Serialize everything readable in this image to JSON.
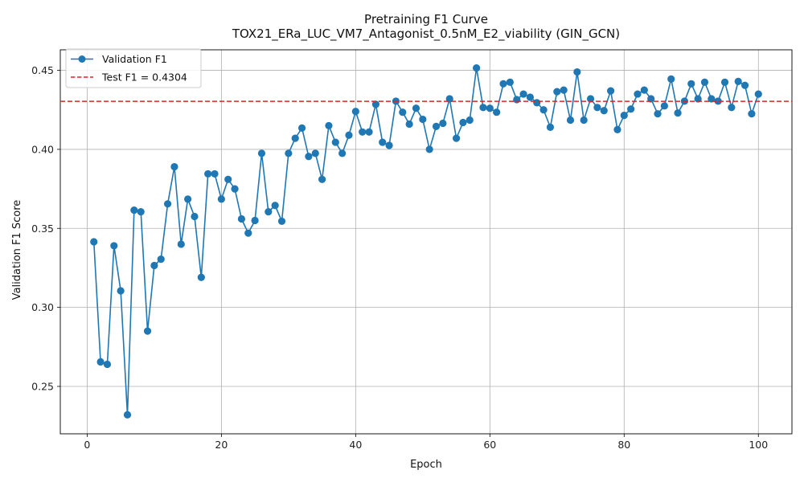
{
  "chart_data": {
    "type": "line",
    "title": "Pretraining F1 Curve",
    "subtitle": "TOX21_ERa_LUC_VM7_Antagonist_0.5nM_E2_viability (GIN_GCN)",
    "xlabel": "Epoch",
    "ylabel": "Validation F1 Score",
    "xlim": [
      -4,
      105
    ],
    "ylim": [
      0.22,
      0.463
    ],
    "xticks": [
      0,
      20,
      40,
      60,
      80,
      100
    ],
    "yticks": [
      0.25,
      0.3,
      0.35,
      0.4,
      0.45
    ],
    "ytick_labels": [
      "0.25",
      "0.30",
      "0.35",
      "0.40",
      "0.45"
    ],
    "grid": true,
    "legend_position": "top-left",
    "series": [
      {
        "name": "Validation F1",
        "color": "#1f77b4",
        "marker": "circle",
        "x": [
          1,
          2,
          3,
          4,
          5,
          6,
          7,
          8,
          9,
          10,
          11,
          12,
          13,
          14,
          15,
          16,
          17,
          18,
          19,
          20,
          21,
          22,
          23,
          24,
          25,
          26,
          27,
          28,
          29,
          30,
          31,
          32,
          33,
          34,
          35,
          36,
          37,
          38,
          39,
          40,
          41,
          42,
          43,
          44,
          45,
          46,
          47,
          48,
          49,
          50,
          51,
          52,
          53,
          54,
          55,
          56,
          57,
          58,
          59,
          60,
          61,
          62,
          63,
          64,
          65,
          66,
          67,
          68,
          69,
          70,
          71,
          72,
          73,
          74,
          75,
          76,
          77,
          78,
          79,
          80,
          81,
          82,
          83,
          84,
          85,
          86,
          87,
          88,
          89,
          90,
          91,
          92,
          93,
          94,
          95,
          96,
          97,
          98,
          99,
          100
        ],
        "y": [
          0.3415,
          0.2655,
          0.264,
          0.339,
          0.3105,
          0.232,
          0.3615,
          0.3605,
          0.285,
          0.3265,
          0.3305,
          0.3655,
          0.389,
          0.34,
          0.3685,
          0.3575,
          0.319,
          0.3845,
          0.3845,
          0.3685,
          0.381,
          0.375,
          0.356,
          0.347,
          0.355,
          0.3975,
          0.3605,
          0.3645,
          0.3545,
          0.3975,
          0.407,
          0.4135,
          0.3955,
          0.3975,
          0.381,
          0.415,
          0.4045,
          0.3975,
          0.409,
          0.424,
          0.411,
          0.411,
          0.4285,
          0.4045,
          0.4025,
          0.4305,
          0.4235,
          0.416,
          0.426,
          0.419,
          0.4,
          0.4145,
          0.4165,
          0.432,
          0.407,
          0.417,
          0.4185,
          0.4515,
          0.4265,
          0.426,
          0.4235,
          0.4415,
          0.4425,
          0.4315,
          0.435,
          0.433,
          0.4295,
          0.425,
          0.414,
          0.4365,
          0.4375,
          0.4185,
          0.449,
          0.4185,
          0.432,
          0.4265,
          0.4245,
          0.437,
          0.4125,
          0.4215,
          0.4255,
          0.435,
          0.4375,
          0.432,
          0.4225,
          0.4275,
          0.4445,
          0.423,
          0.4305,
          0.4415,
          0.432,
          0.4425,
          0.432,
          0.4305,
          0.4425,
          0.4265,
          0.443,
          0.4405,
          0.4225,
          0.435
        ]
      },
      {
        "name": "Test F1 = 0.4304",
        "color": "#d62728",
        "style": "dashed",
        "value": 0.4304
      }
    ]
  }
}
